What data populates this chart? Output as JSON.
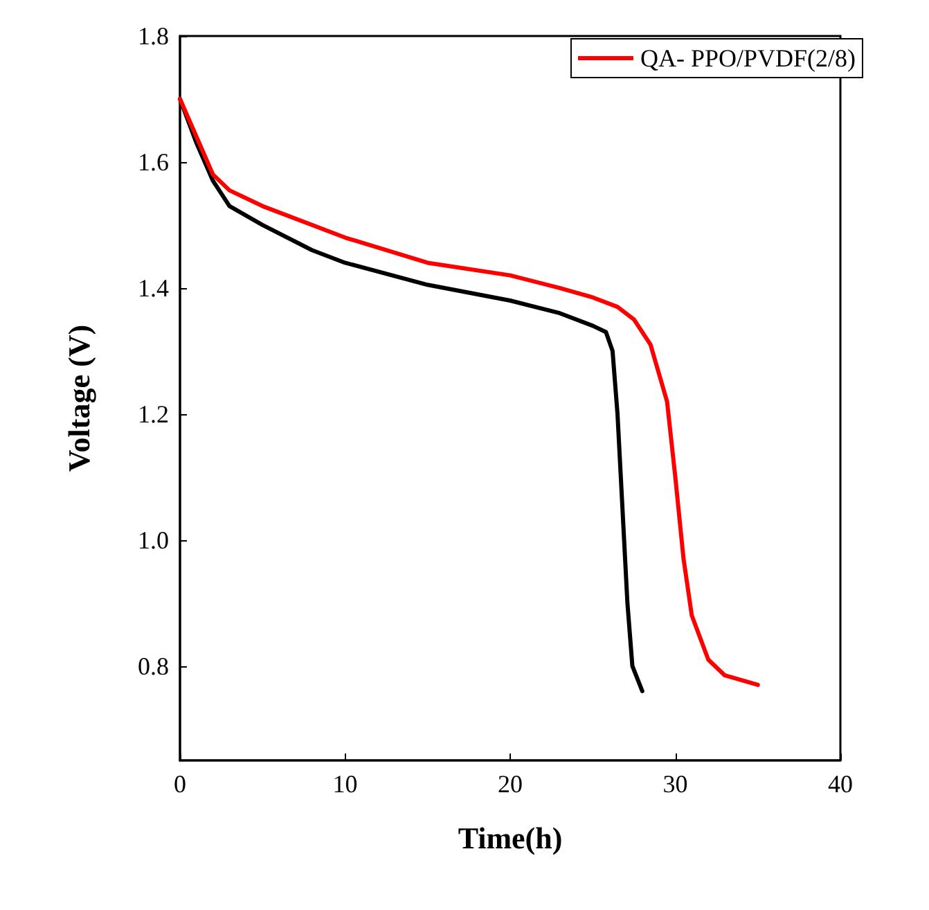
{
  "chart_data": {
    "type": "line",
    "xlabel": "Time(h)",
    "ylabel": "Voltage (V)",
    "xlim": [
      0,
      40
    ],
    "xticks": [
      0,
      10,
      20,
      30,
      40
    ],
    "ylim": [
      0.65,
      1.8
    ],
    "yticks": [
      0.8,
      {
        "value": 1.0,
        "label": "1.0"
      },
      1.2,
      1.4,
      1.6,
      1.8
    ],
    "grid": false,
    "legend": "top right",
    "marker": "none",
    "line_style": "solid",
    "series": [
      {
        "color": "#000000",
        "x": [
          0,
          1,
          2,
          3,
          5,
          8,
          10,
          15,
          20,
          23,
          25,
          25.8,
          26.2,
          26.5,
          26.8,
          27.1,
          27.4,
          28
        ],
        "values": [
          1.7,
          1.63,
          1.57,
          1.53,
          1.5,
          1.46,
          1.44,
          1.405,
          1.38,
          1.36,
          1.34,
          1.33,
          1.3,
          1.2,
          1.05,
          0.9,
          0.8,
          0.76
        ]
      },
      {
        "name": "QA- PPO/PVDF(2/8)",
        "color": "#ff0000",
        "x": [
          0,
          1,
          2,
          3,
          5,
          10,
          15,
          20,
          23,
          25,
          26.5,
          27.5,
          28.5,
          29.5,
          30,
          30.5,
          31,
          32,
          33,
          35
        ],
        "values": [
          1.7,
          1.64,
          1.58,
          1.555,
          1.53,
          1.48,
          1.44,
          1.42,
          1.4,
          1.385,
          1.37,
          1.35,
          1.31,
          1.22,
          1.1,
          0.97,
          0.88,
          0.81,
          0.785,
          0.77
        ]
      }
    ]
  }
}
